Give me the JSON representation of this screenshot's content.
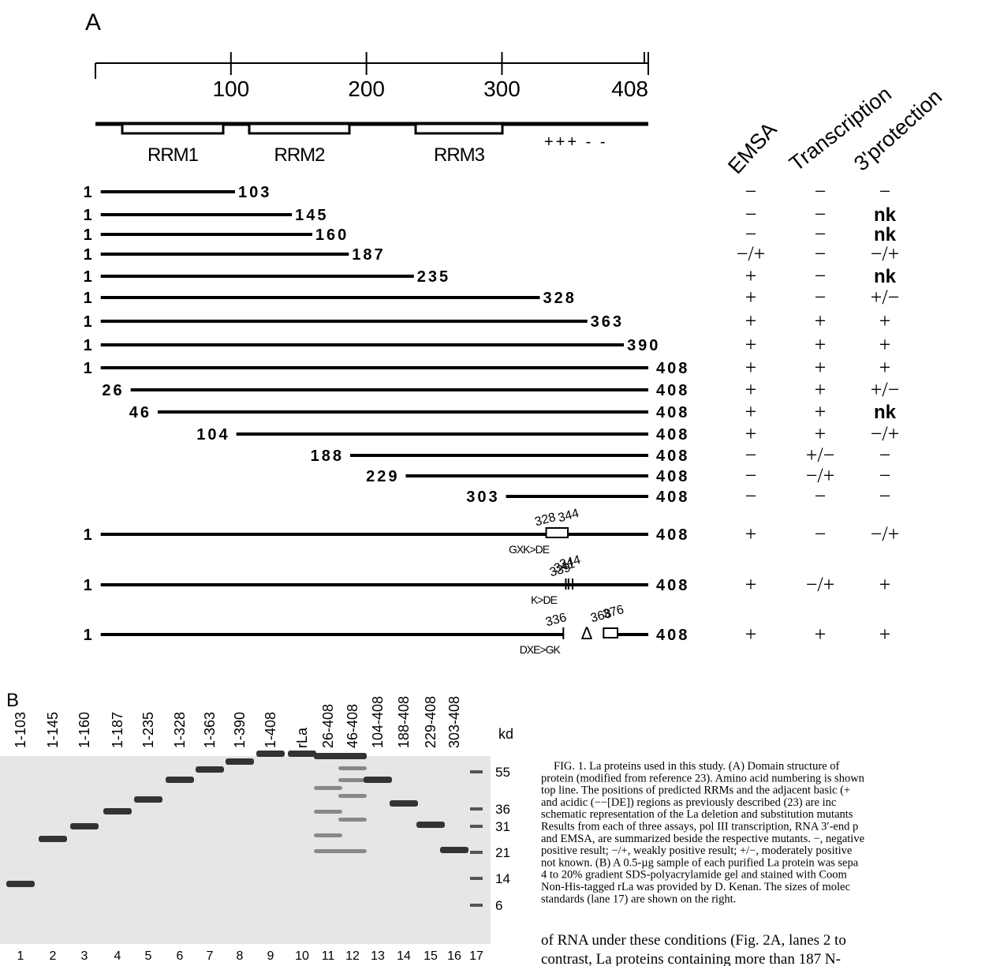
{
  "panel_a": {
    "label": "A",
    "ruler_ticks": [
      "100",
      "200",
      "300",
      "408"
    ],
    "domains": [
      "RRM1",
      "RRM2",
      "RRM3"
    ],
    "charge": "+++ - -",
    "columns": [
      "EMSA",
      "Transcription",
      "3'protection"
    ],
    "constructs": [
      {
        "start": "1",
        "end": "103",
        "results": [
          "−",
          "−",
          "−"
        ]
      },
      {
        "start": "1",
        "end": "145",
        "results": [
          "−",
          "−",
          "nk"
        ]
      },
      {
        "start": "1",
        "end": "160",
        "results": [
          "−",
          "−",
          "nk"
        ]
      },
      {
        "start": "1",
        "end": "187",
        "results": [
          "−/+",
          "−",
          "−/+"
        ]
      },
      {
        "start": "1",
        "end": "235",
        "results": [
          "+",
          "−",
          "nk"
        ]
      },
      {
        "start": "1",
        "end": "328",
        "results": [
          "+",
          "−",
          "+/−"
        ]
      },
      {
        "start": "1",
        "end": "363",
        "results": [
          "+",
          "+",
          "+"
        ]
      },
      {
        "start": "1",
        "end": "390",
        "results": [
          "+",
          "+",
          "+"
        ]
      },
      {
        "start": "1",
        "end": "408",
        "results": [
          "+",
          "+",
          "+"
        ]
      },
      {
        "start": "26",
        "end": "408",
        "results": [
          "+",
          "+",
          "+/−"
        ]
      },
      {
        "start": "46",
        "end": "408",
        "results": [
          "+",
          "+",
          "nk"
        ]
      },
      {
        "start": "104",
        "end": "408",
        "results": [
          "+",
          "+",
          "−/+"
        ]
      },
      {
        "start": "188",
        "end": "408",
        "results": [
          "−",
          "+/−",
          "−"
        ]
      },
      {
        "start": "229",
        "end": "408",
        "results": [
          "−",
          "−/+",
          "−"
        ]
      },
      {
        "start": "303",
        "end": "408",
        "results": [
          "−",
          "−",
          "−"
        ]
      }
    ],
    "mutants": [
      {
        "start": "1",
        "end": "408",
        "sites": [
          "328",
          "344"
        ],
        "mutation": "GXK>DE",
        "results": [
          "+",
          "−",
          "−/+"
        ]
      },
      {
        "start": "1",
        "end": "408",
        "sites": [
          "339",
          "341",
          "344"
        ],
        "mutation": "K>DE",
        "results": [
          "+",
          "−/+",
          "+"
        ]
      },
      {
        "start": "1",
        "end": "408",
        "sites": [
          "336",
          "368",
          "376"
        ],
        "deletion": "Δ",
        "mutation": "DXE>GK",
        "results": [
          "+",
          "+",
          "+"
        ]
      }
    ]
  },
  "panel_b": {
    "label": "B",
    "lanes": [
      "1-103",
      "1-145",
      "1-160",
      "1-187",
      "1-235",
      "1-328",
      "1-363",
      "1-390",
      "1-408",
      "rLa",
      "26-408",
      "46-408",
      "104-408",
      "188-408",
      "229-408",
      "303-408"
    ],
    "unit": "kd",
    "markers": [
      "55",
      "36",
      "31",
      "21",
      "14",
      "6"
    ],
    "lane_numbers": [
      "1",
      "2",
      "3",
      "4",
      "5",
      "6",
      "7",
      "8",
      "9",
      "10",
      "11",
      "12",
      "13",
      "14",
      "15",
      "16",
      "17"
    ]
  },
  "caption": [
    "FIG. 1. La proteins used in this study. (A) Domain structure of",
    "protein (modified from reference 23). Amino acid numbering is shown",
    "top line. The positions of predicted RRMs and the adjacent basic (+",
    "and acidic (−−[DE]) regions as previously described (23) are inc",
    "schematic representation of the La deletion and substitution mutants",
    "Results from each of three assays, pol III transcription, RNA 3′-end p",
    "and EMSA, are summarized beside the respective mutants. −, negative",
    "positive result; −/+, weakly positive result; +/−, moderately positive",
    "not known. (B) A 0.5-µg sample of each purified La protein was sepa",
    "4 to 20% gradient SDS-polyacrylamide gel and stained with Coom",
    "Non-His-tagged rLa was provided by D. Kenan. The sizes of molec",
    "standards (lane 17) are shown on the right."
  ],
  "body": [
    "of RNA under these conditions (Fig. 2A, lanes 2 to",
    "contrast, La proteins containing more than 187 N-"
  ]
}
